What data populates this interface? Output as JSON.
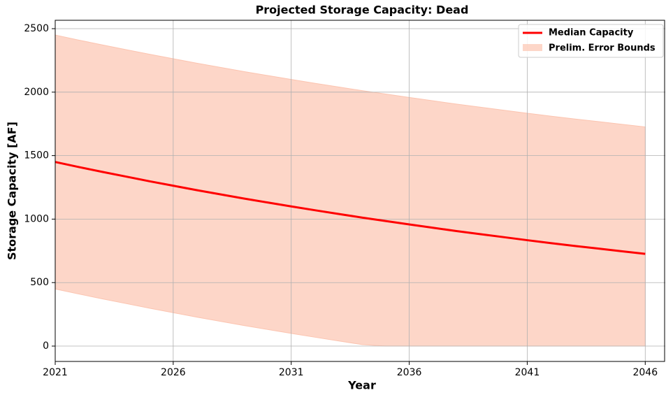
{
  "chart_data": {
    "type": "line",
    "title": "Projected Storage Capacity: Dead",
    "x_label": "Year",
    "y_label": "Storage Capacity [AF]",
    "x": [
      2021,
      2022,
      2023,
      2024,
      2025,
      2026,
      2027,
      2028,
      2029,
      2030,
      2031,
      2032,
      2033,
      2034,
      2035,
      2036,
      2037,
      2038,
      2039,
      2040,
      2041,
      2042,
      2043,
      2044,
      2045,
      2046
    ],
    "series": [
      {
        "name": "Median Capacity",
        "color": "#ff0000",
        "values": [
          1450,
          1410,
          1372,
          1335,
          1298,
          1263,
          1228,
          1195,
          1162,
          1131,
          1100,
          1070,
          1041,
          1012,
          985,
          958,
          932,
          906,
          882,
          858,
          834,
          811,
          789,
          768,
          747,
          726
        ]
      }
    ],
    "band": {
      "name": "Prelim. Error Bounds",
      "color": "#fcc4b0",
      "lower": [
        450,
        410,
        372,
        335,
        298,
        263,
        228,
        195,
        162,
        131,
        100,
        70,
        41,
        12,
        0,
        0,
        0,
        0,
        0,
        0,
        0,
        0,
        0,
        0,
        0,
        0
      ],
      "upper": [
        2450,
        2410,
        2372,
        2335,
        2298,
        2263,
        2228,
        2195,
        2162,
        2131,
        2100,
        2070,
        2041,
        2012,
        1985,
        1958,
        1932,
        1906,
        1882,
        1858,
        1834,
        1811,
        1789,
        1768,
        1747,
        1726
      ]
    },
    "xlim": [
      2021,
      2046.85
    ],
    "xticks": [
      2021,
      2026,
      2031,
      2036,
      2041,
      2046
    ],
    "ylim": [
      -121,
      2566
    ],
    "yticks": [
      0,
      500,
      1000,
      1500,
      2000,
      2500
    ],
    "grid": true,
    "legend": "upper right"
  }
}
